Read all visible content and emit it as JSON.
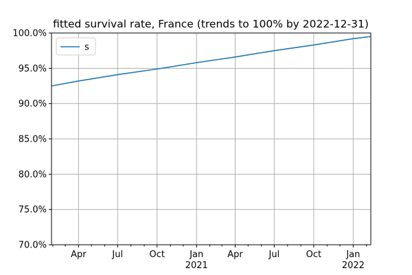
{
  "chart_data": {
    "type": "line",
    "title": "fitted survival rate, France (trends to 100% by 2022-12-31)",
    "xlabel": "",
    "ylabel": "",
    "x_range": [
      "2020-01-29",
      "2022-02-11"
    ],
    "ylim": [
      70.0,
      100.0
    ],
    "y_ticks": [
      70.0,
      75.0,
      80.0,
      85.0,
      90.0,
      95.0,
      100.0
    ],
    "y_tick_labels": [
      "70.0%",
      "75.0%",
      "80.0%",
      "85.0%",
      "90.0%",
      "95.0%",
      "100.0%"
    ],
    "x_major_ticks": [
      {
        "date": "2020-04-01",
        "label": "Apr",
        "sublabel": ""
      },
      {
        "date": "2020-07-01",
        "label": "Jul",
        "sublabel": ""
      },
      {
        "date": "2020-10-01",
        "label": "Oct",
        "sublabel": ""
      },
      {
        "date": "2021-01-01",
        "label": "Jan",
        "sublabel": "2021"
      },
      {
        "date": "2021-04-01",
        "label": "Apr",
        "sublabel": ""
      },
      {
        "date": "2021-07-01",
        "label": "Jul",
        "sublabel": ""
      },
      {
        "date": "2021-10-01",
        "label": "Oct",
        "sublabel": ""
      },
      {
        "date": "2022-01-01",
        "label": "Jan",
        "sublabel": "2022"
      }
    ],
    "x_minor_ticks": [
      "2020-02-01",
      "2020-03-01",
      "2020-05-01",
      "2020-06-01",
      "2020-08-01",
      "2020-09-01",
      "2020-11-01",
      "2020-12-01",
      "2021-02-01",
      "2021-03-01",
      "2021-05-01",
      "2021-06-01",
      "2021-08-01",
      "2021-09-01",
      "2021-11-01",
      "2021-12-01",
      "2022-02-01"
    ],
    "grid": true,
    "legend": {
      "placement": "upper-left",
      "entries": [
        "s"
      ]
    },
    "series": [
      {
        "name": "s",
        "color": "#1f77b4",
        "x": [
          "2020-01-29",
          "2020-04-01",
          "2020-07-01",
          "2020-10-01",
          "2021-01-01",
          "2021-04-01",
          "2021-07-01",
          "2021-10-01",
          "2022-01-01",
          "2022-02-11"
        ],
        "y": [
          92.5,
          93.2,
          94.1,
          94.9,
          95.8,
          96.6,
          97.5,
          98.3,
          99.2,
          99.5
        ]
      }
    ]
  }
}
